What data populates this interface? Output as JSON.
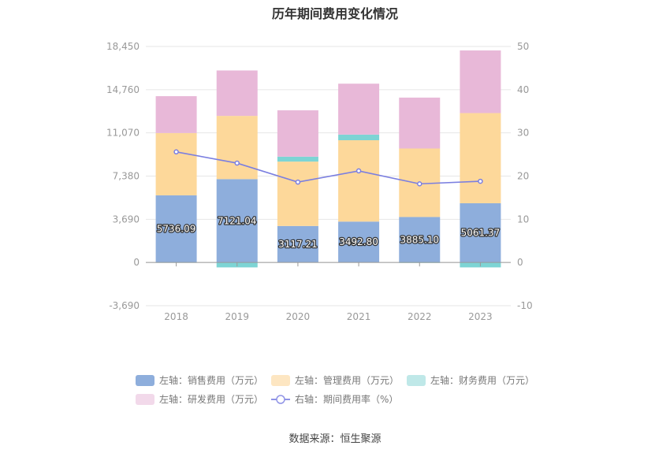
{
  "chart_data": {
    "type": "bar",
    "title": "历年期间费用变化情况",
    "categories": [
      "2018",
      "2019",
      "2020",
      "2021",
      "2022",
      "2023"
    ],
    "left_axis": {
      "min": -3690,
      "max": 18450,
      "ticks": [
        "-3,690",
        "0",
        "3,690",
        "7,380",
        "11,070",
        "14,760",
        "18,450"
      ],
      "tick_values": [
        -3690,
        0,
        3690,
        7380,
        11070,
        14760,
        18450
      ]
    },
    "right_axis": {
      "min": -10,
      "max": 50,
      "ticks": [
        "-10",
        "0",
        "10",
        "20",
        "30",
        "40",
        "50"
      ],
      "tick_values": [
        -10,
        0,
        10,
        20,
        30,
        40,
        50
      ]
    },
    "stacked": true,
    "series": [
      {
        "name": "左轴：销售费用（万元）",
        "axis": "left",
        "type": "bar",
        "color": "#8eaedc",
        "values": [
          5736.09,
          7121.04,
          3117.21,
          3492.8,
          3885.1,
          5061.37
        ],
        "labels": [
          "5736.09",
          "7121.04",
          "3117.21",
          "3492.80",
          "3885.10",
          "5061.37"
        ]
      },
      {
        "name": "左轴：管理费用（万元）",
        "axis": "left",
        "type": "bar",
        "color": "#fdd89a",
        "values": [
          5320,
          5400,
          5500,
          6950,
          5850,
          7700
        ]
      },
      {
        "name": "左轴：财务费用（万元）",
        "axis": "left",
        "type": "bar",
        "color": "#7dd4d4",
        "values": [
          -30,
          -420,
          420,
          480,
          -40,
          -420
        ]
      },
      {
        "name": "左轴：研发费用（万元）",
        "axis": "left",
        "type": "bar",
        "color": "#e8b8d8",
        "values": [
          3150,
          3880,
          3960,
          4350,
          4350,
          5350
        ]
      },
      {
        "name": "右轴：期间费用率（%）",
        "axis": "right",
        "type": "line",
        "color": "#7b7fe0",
        "values": [
          25.6,
          23.0,
          18.6,
          21.2,
          18.2,
          18.8
        ]
      }
    ],
    "legend_placement": "bottom",
    "grid": true
  },
  "legend": [
    {
      "label": "左轴：销售费用（万元）",
      "color": "#8eaedc",
      "kind": "swatch"
    },
    {
      "label": "左轴：管理费用（万元）",
      "color": "#fde6c2",
      "kind": "swatch"
    },
    {
      "label": "左轴：财务费用（万元）",
      "color": "#bfe8e8",
      "kind": "swatch"
    },
    {
      "label": "左轴：研发费用（万元）",
      "color": "#f2d9ea",
      "kind": "swatch"
    },
    {
      "label": "右轴：期间费用率（%）",
      "color": "#8f93e6",
      "kind": "line"
    }
  ],
  "source": "数据来源：恒生聚源"
}
